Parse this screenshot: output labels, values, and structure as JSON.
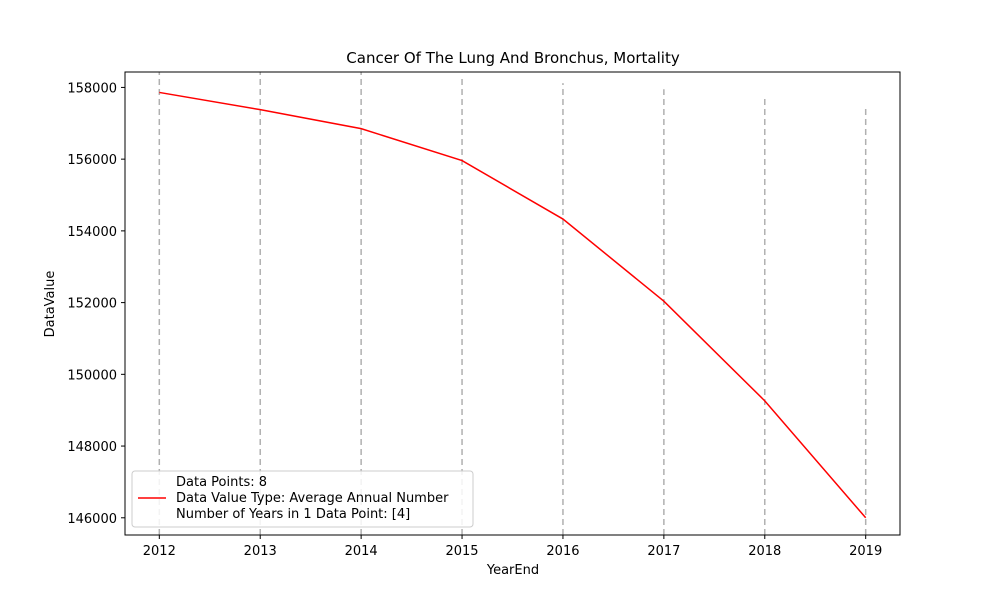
{
  "chart_data": {
    "type": "line",
    "title": "Cancer Of The Lung And Bronchus, Mortality",
    "xlabel": "YearEnd",
    "ylabel": "DataValue",
    "x": [
      2012,
      2013,
      2014,
      2015,
      2016,
      2017,
      2018,
      2019
    ],
    "xticks": [
      "2012",
      "2013",
      "2014",
      "2015",
      "2016",
      "2017",
      "2018",
      "2019"
    ],
    "yticks": [
      "146000",
      "148000",
      "150000",
      "152000",
      "154000",
      "156000",
      "158000"
    ],
    "xlim": [
      2011.66,
      2019.34
    ],
    "ylim": [
      145520,
      158430
    ],
    "series": [
      {
        "values": [
          157860,
          157380,
          156850,
          155960,
          154330,
          152040,
          149260,
          146000
        ],
        "color": "#ff0000"
      }
    ],
    "vertical_dashed_lines": [
      {
        "x": 2012,
        "top": 158430
      },
      {
        "x": 2013,
        "top": 158430
      },
      {
        "x": 2014,
        "top": 158430
      },
      {
        "x": 2015,
        "top": 158280
      },
      {
        "x": 2016,
        "top": 158120
      },
      {
        "x": 2017,
        "top": 157950
      },
      {
        "x": 2018,
        "top": 157750
      },
      {
        "x": 2019,
        "top": 157430
      }
    ],
    "dashed_line_color": "#b0b0b0",
    "legend": {
      "placement": "lower-left",
      "lines": [
        "Data Points: 8",
        "Data Value Type: Average Annual Number",
        "Number of Years in 1 Data Point: [4]"
      ]
    },
    "grid": false
  }
}
